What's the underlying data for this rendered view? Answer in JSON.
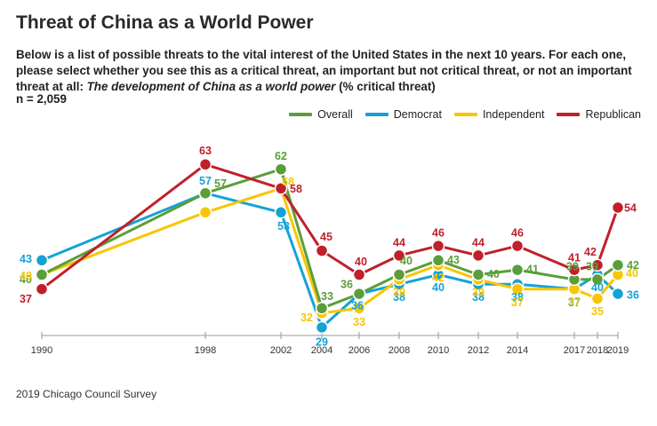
{
  "header": {
    "title": "Threat of China as a World Power",
    "subtitle": "Below is a list of possible threats to the vital interest of the United States in the next 10 years. For each one, please select whether you see this as a critical threat, an important but not critical threat, or not an important threat at all: ",
    "question": "The development of China as a world power",
    "question_suffix": " (% critical threat)",
    "sample": "n = 2,059"
  },
  "source": "2019 Chicago Council Survey",
  "chart_data": {
    "type": "line",
    "x": [
      1990,
      1998,
      2002,
      2004,
      2006,
      2008,
      2010,
      2012,
      2014,
      2017,
      2018,
      2019
    ],
    "series": [
      {
        "name": "Overall",
        "color": "#5a9e3a",
        "values": [
          40,
          57,
          62,
          33,
          36,
          40,
          43,
          40,
          41,
          39,
          39,
          42
        ]
      },
      {
        "name": "Democrat",
        "color": "#17a2d4",
        "values": [
          43,
          57,
          53,
          29,
          36,
          38,
          40,
          38,
          38,
          37,
          40,
          36
        ]
      },
      {
        "name": "Independent",
        "color": "#f7c600",
        "values": [
          40,
          53,
          58,
          32,
          33,
          39,
          42,
          39,
          37,
          37,
          35,
          40
        ]
      },
      {
        "name": "Republican",
        "color": "#c0202a",
        "values": [
          37,
          63,
          58,
          45,
          40,
          44,
          46,
          44,
          46,
          41,
          42,
          54
        ]
      }
    ],
    "data_labels": [
      {
        "series": "Overall",
        "values": [
          "40",
          "",
          "62",
          "33",
          "36",
          "40",
          "43",
          "40",
          "41",
          "39",
          "39",
          "42"
        ]
      },
      {
        "series": "Democrat",
        "values": [
          "43",
          "57",
          "53",
          "29",
          "36",
          "38",
          "40",
          "38",
          "38",
          "37",
          "40",
          "36"
        ]
      },
      {
        "series": "Independent",
        "values": [
          "40",
          "",
          "58",
          "32",
          "33",
          "39",
          "42",
          "39",
          "37",
          "37",
          "35",
          "40"
        ]
      },
      {
        "series": "Republican",
        "values": [
          "37",
          "63",
          "58",
          "45",
          "40",
          "44",
          "46",
          "44",
          "46",
          "41",
          "42",
          "54"
        ]
      },
      {
        "series": "Overall",
        "values": [
          "",
          "57",
          "",
          "",
          "",
          "",
          "",
          "",
          "",
          "",
          "",
          ""
        ]
      }
    ],
    "legend_position": "top-right",
    "grid": false
  }
}
